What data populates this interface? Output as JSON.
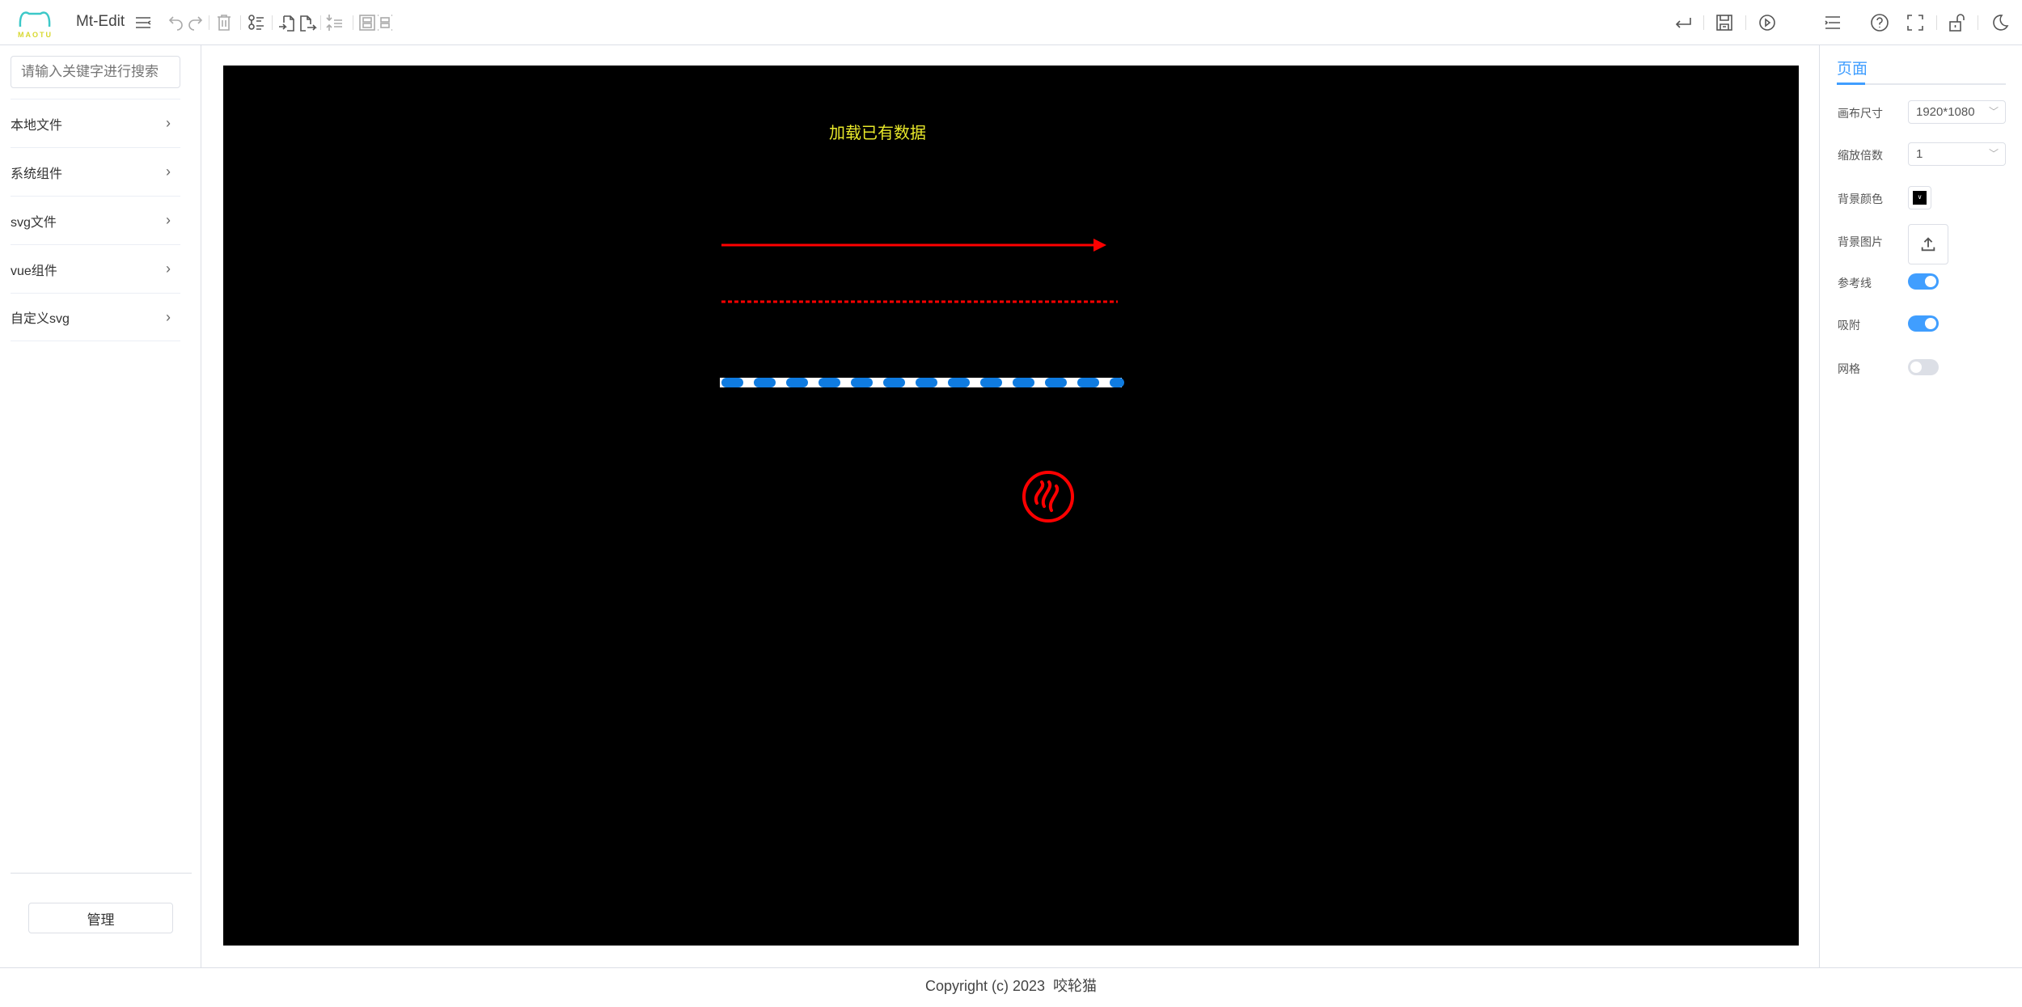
{
  "header": {
    "logo_text": "MAOTU",
    "app_title": "Mt-Edit"
  },
  "sidebar": {
    "search_placeholder": "请输入关键字进行搜索",
    "items": [
      {
        "label": "本地文件"
      },
      {
        "label": "系统组件"
      },
      {
        "label": "svg文件"
      },
      {
        "label": "vue组件"
      },
      {
        "label": "自定义svg"
      }
    ],
    "manage_label": "管理"
  },
  "canvas": {
    "background": "#000000",
    "text": "加载已有数据",
    "text_color": "#e8e82a",
    "arrow_color": "#ff0000",
    "dash_color": "#ff0000",
    "flow_color": "#0f7be0",
    "icon_color": "#ff0000"
  },
  "panel": {
    "tab": "页面",
    "canvas_size_label": "画布尺寸",
    "canvas_size_value": "1920*1080",
    "zoom_label": "缩放倍数",
    "zoom_value": "1",
    "bg_color_label": "背景颜色",
    "bg_color_value": "#000000",
    "bg_image_label": "背景图片",
    "guides_label": "参考线",
    "guides_on": true,
    "snap_label": "吸附",
    "snap_on": true,
    "grid_label": "网格",
    "grid_on": false,
    "accent": "#409eff"
  },
  "footer": {
    "copyright": "Copyright (c) 2023  咬轮猫"
  }
}
